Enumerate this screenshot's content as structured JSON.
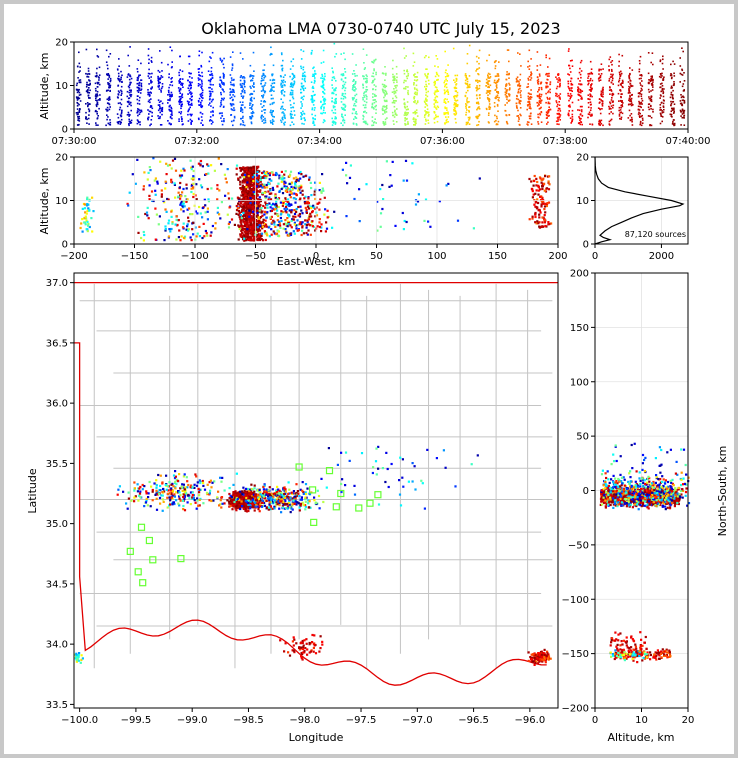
{
  "chart_data": {
    "title": "Oklahoma LMA 0730-0740 UTC July 15, 2023",
    "source_count_label": "87,120 sources",
    "color_scale": [
      "#00008f",
      "#0000ff",
      "#00ffff",
      "#ffff00",
      "#ff0000",
      "#800000"
    ],
    "panels": [
      {
        "id": "time-altitude",
        "type": "scatter",
        "xlabel": "",
        "ylabel": "Altitude, km",
        "xlim_seconds": [
          0,
          600
        ],
        "ylim": [
          0,
          20
        ],
        "xticks": [
          "07:30:00",
          "07:32:00",
          "07:34:00",
          "07:36:00",
          "07:38:00",
          "07:40:00"
        ],
        "yticks": [
          "0",
          "10",
          "20"
        ]
      },
      {
        "id": "ew-altitude",
        "type": "scatter",
        "xlabel": "East-West, km",
        "ylabel": "Altitude, km",
        "xlim": [
          -200,
          200
        ],
        "ylim": [
          0,
          20
        ],
        "xticks": [
          "−200",
          "−150",
          "−100",
          "−50",
          "0",
          "50",
          "100",
          "150",
          "200"
        ],
        "yticks": [
          "0",
          "10",
          "20"
        ]
      },
      {
        "id": "altitude-histogram",
        "type": "line",
        "xlim": [
          0,
          2800
        ],
        "ylim": [
          0,
          20
        ],
        "xticks": [
          "0",
          "2000"
        ],
        "yticks": [
          "0",
          "10",
          "20"
        ],
        "curve": [
          [
            0,
            0
          ],
          [
            200,
            0.5
          ],
          [
            450,
            1
          ],
          [
            250,
            1.5
          ],
          [
            150,
            2
          ],
          [
            300,
            3
          ],
          [
            500,
            4
          ],
          [
            800,
            5
          ],
          [
            1100,
            6
          ],
          [
            1450,
            7
          ],
          [
            2000,
            8
          ],
          [
            2550,
            8.8
          ],
          [
            2650,
            9.2
          ],
          [
            2300,
            10
          ],
          [
            1600,
            11
          ],
          [
            900,
            12
          ],
          [
            400,
            13
          ],
          [
            200,
            14
          ],
          [
            100,
            15
          ],
          [
            50,
            16
          ],
          [
            20,
            17
          ],
          [
            10,
            18
          ],
          [
            0,
            20
          ]
        ]
      },
      {
        "id": "plan-view",
        "type": "scatter",
        "xlabel": "Longitude",
        "ylabel": "Latitude",
        "xlim": [
          -100.05,
          -95.75
        ],
        "ylim": [
          33.47,
          37.08
        ],
        "xticks": [
          "−100.0",
          "−99.5",
          "−99.0",
          "−98.5",
          "−98.0",
          "−97.5",
          "−97.0",
          "−96.5",
          "−96.0"
        ],
        "yticks": [
          "33.5",
          "34.0",
          "34.5",
          "35.0",
          "35.5",
          "36.0",
          "36.5",
          "37.0"
        ],
        "stations": [
          [
            -99.45,
            34.97
          ],
          [
            -99.38,
            34.86
          ],
          [
            -99.55,
            34.77
          ],
          [
            -99.35,
            34.7
          ],
          [
            -99.48,
            34.6
          ],
          [
            -99.44,
            34.51
          ],
          [
            -99.1,
            34.71
          ],
          [
            -98.05,
            35.47
          ],
          [
            -97.78,
            35.44
          ],
          [
            -97.68,
            35.25
          ],
          [
            -97.35,
            35.24
          ],
          [
            -97.42,
            35.17
          ],
          [
            -97.52,
            35.13
          ],
          [
            -97.93,
            35.28
          ],
          [
            -97.92,
            35.01
          ],
          [
            -97.72,
            35.14
          ]
        ]
      },
      {
        "id": "altitude-ns",
        "type": "scatter",
        "xlabel": "Altitude, km",
        "ylabel": "North-South, km",
        "xlim": [
          0,
          20
        ],
        "ylim": [
          -200,
          200
        ],
        "xticks": [
          "0",
          "10",
          "20"
        ],
        "yticks": [
          "−200",
          "−150",
          "−100",
          "−50",
          "0",
          "50",
          "100",
          "150",
          "200"
        ]
      }
    ]
  }
}
